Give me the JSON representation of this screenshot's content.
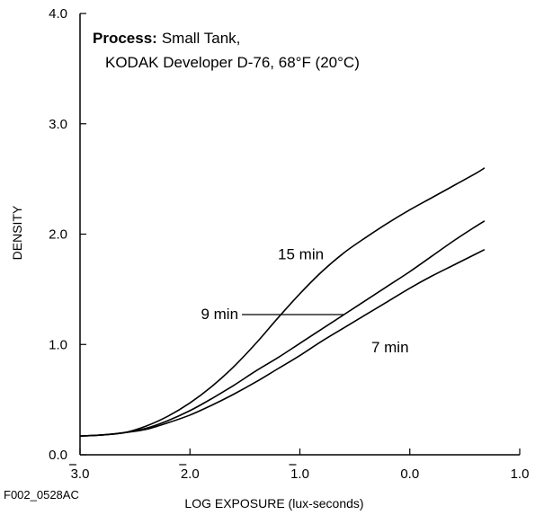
{
  "chart_data": {
    "type": "line",
    "title_bold": "Process:",
    "title_line1": "Small Tank,",
    "title_line2": "KODAK Developer D-76, 68°F (20°C)",
    "xlabel": "LOG EXPOSURE (lux-seconds)",
    "ylabel": "DENSITY",
    "xlim": [
      -3.0,
      1.0
    ],
    "ylim": [
      0.0,
      4.0
    ],
    "x_ticks": [
      {
        "value": -3.0,
        "label": "3.0",
        "bar": true
      },
      {
        "value": -2.0,
        "label": "2.0",
        "bar": true
      },
      {
        "value": -1.0,
        "label": "1.0",
        "bar": true
      },
      {
        "value": 0.0,
        "label": "0.0",
        "bar": false
      },
      {
        "value": 1.0,
        "label": "1.0",
        "bar": false
      }
    ],
    "y_ticks": [
      {
        "value": 0.0,
        "label": "0.0"
      },
      {
        "value": 1.0,
        "label": "1.0"
      },
      {
        "value": 2.0,
        "label": "2.0"
      },
      {
        "value": 3.0,
        "label": "3.0"
      },
      {
        "value": 4.0,
        "label": "4.0"
      }
    ],
    "grid": false,
    "series": [
      {
        "name": "15 min",
        "x": [
          -3.0,
          -2.8,
          -2.6,
          -2.4,
          -2.2,
          -2.0,
          -1.8,
          -1.6,
          -1.4,
          -1.2,
          -1.0,
          -0.8,
          -0.6,
          -0.4,
          -0.2,
          0.0,
          0.2,
          0.4,
          0.6,
          0.68
        ],
        "y": [
          0.17,
          0.18,
          0.2,
          0.26,
          0.35,
          0.47,
          0.62,
          0.8,
          1.01,
          1.24,
          1.46,
          1.66,
          1.83,
          1.97,
          2.1,
          2.22,
          2.33,
          2.44,
          2.55,
          2.6
        ]
      },
      {
        "name": "9 min",
        "x": [
          -3.0,
          -2.8,
          -2.6,
          -2.4,
          -2.2,
          -2.0,
          -1.8,
          -1.6,
          -1.4,
          -1.2,
          -1.0,
          -0.8,
          -0.6,
          -0.4,
          -0.2,
          0.0,
          0.2,
          0.4,
          0.6,
          0.68
        ],
        "y": [
          0.17,
          0.18,
          0.2,
          0.24,
          0.31,
          0.4,
          0.51,
          0.63,
          0.76,
          0.88,
          1.01,
          1.14,
          1.27,
          1.4,
          1.53,
          1.66,
          1.8,
          1.94,
          2.07,
          2.12
        ]
      },
      {
        "name": "7 min",
        "x": [
          -3.0,
          -2.8,
          -2.6,
          -2.4,
          -2.2,
          -2.0,
          -1.8,
          -1.6,
          -1.4,
          -1.2,
          -1.0,
          -0.8,
          -0.6,
          -0.4,
          -0.2,
          0.0,
          0.2,
          0.4,
          0.6,
          0.68
        ],
        "y": [
          0.17,
          0.18,
          0.2,
          0.23,
          0.29,
          0.36,
          0.45,
          0.55,
          0.66,
          0.78,
          0.9,
          1.03,
          1.15,
          1.27,
          1.39,
          1.51,
          1.62,
          1.72,
          1.82,
          1.86
        ]
      }
    ],
    "annotations": [
      {
        "text": "15 min",
        "x": -1.2,
        "y": 1.77
      },
      {
        "text": "9 min",
        "x": -1.9,
        "y": 1.23,
        "leader_to": [
          -0.6,
          1.23
        ]
      },
      {
        "text": "7 min",
        "x": -0.35,
        "y": 0.93
      }
    ],
    "figure_id": "F002_0528AC"
  }
}
